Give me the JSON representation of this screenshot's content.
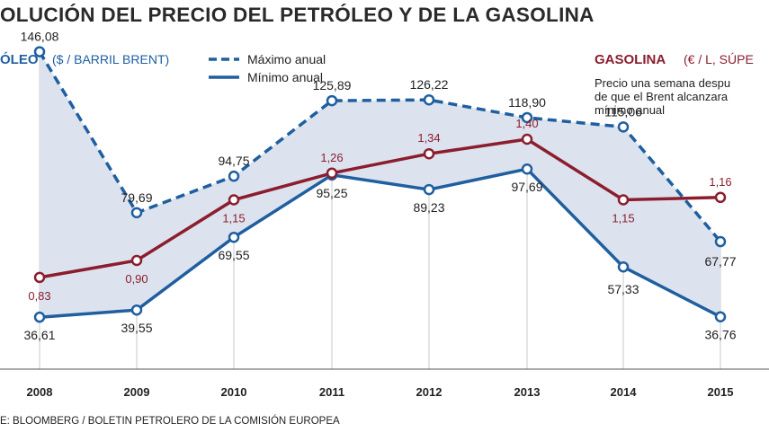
{
  "title": "OLUCIÓN DEL PRECIO DEL PETRÓLEO Y DE LA GASOLINA",
  "oil_legend": {
    "heading": "ÓLEO",
    "unit": "($ / BARRIL BRENT)",
    "max_label": "Máximo anual",
    "min_label": "Mínimo anual"
  },
  "gas_legend": {
    "heading": "GASOLINA",
    "unit": "(€ / L, SÚPE",
    "note": [
      "Precio una semana despu",
      "de que el Brent alcanzara",
      "mínimo anual"
    ]
  },
  "source": "E: BLOOMBERG / BOLETIN PETROLERO DE LA COMISIÓN EUROPEA",
  "colors": {
    "oil": "#1f5fa0",
    "gas": "#8b1e2e",
    "band": "#dde3ee",
    "grid": "#c8c8c8"
  },
  "chart_data": {
    "type": "line",
    "x": [
      "2008",
      "2009",
      "2010",
      "2011",
      "2012",
      "2013",
      "2014",
      "2015"
    ],
    "oil_ylim": [
      20,
      160
    ],
    "gas_ylim": [
      0.5,
      1.9
    ],
    "series": [
      {
        "name": "Máximo anual",
        "style": "dashed",
        "values": [
          146.08,
          79.69,
          94.75,
          125.89,
          126.22,
          118.9,
          115.06,
          67.77
        ],
        "labels": [
          "146,08",
          "79,69",
          "94,75",
          "125,89",
          "126,22",
          "118,90",
          "115,06",
          "67,77"
        ]
      },
      {
        "name": "Mínimo anual",
        "style": "solid",
        "values": [
          36.61,
          39.55,
          69.55,
          95.25,
          89.23,
          97.69,
          57.33,
          36.76
        ],
        "labels": [
          "36,61",
          "39,55",
          "69,55",
          "95,25",
          "89,23",
          "97,69",
          "57,33",
          "36,76"
        ]
      },
      {
        "name": "GASOLINA",
        "style": "solid",
        "values": [
          0.83,
          0.9,
          1.15,
          1.26,
          1.34,
          1.4,
          1.15,
          1.16
        ],
        "labels": [
          "0,83",
          "0,90",
          "1,15",
          "1,26",
          "1,34",
          "1,40",
          "1,15",
          "1,16"
        ]
      }
    ]
  }
}
